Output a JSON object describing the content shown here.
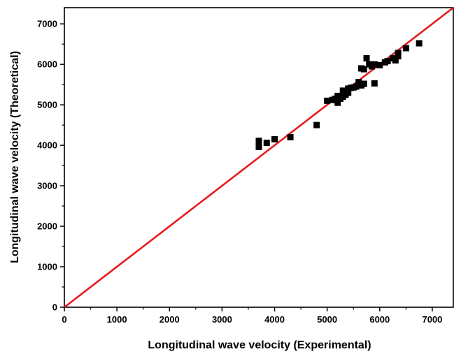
{
  "chart_data": {
    "type": "scatter",
    "title": "",
    "xlabel": "Longitudinal wave velocity (Experimental)",
    "ylabel": "Longitudinal wave velocity (Theoretical)",
    "xlim": [
      0,
      7400
    ],
    "ylim": [
      0,
      7400
    ],
    "xticks": [
      0,
      1000,
      2000,
      3000,
      4000,
      5000,
      6000,
      7000
    ],
    "yticks": [
      0,
      1000,
      2000,
      3000,
      4000,
      5000,
      6000,
      7000
    ],
    "grid": false,
    "legend": "none",
    "series": [
      {
        "marker": "square",
        "color": "#000000",
        "points": [
          [
            3700,
            3960
          ],
          [
            3700,
            4030
          ],
          [
            3700,
            4110
          ],
          [
            3850,
            4060
          ],
          [
            4000,
            4150
          ],
          [
            4300,
            4200
          ],
          [
            4800,
            4500
          ],
          [
            5000,
            5100
          ],
          [
            5100,
            5120
          ],
          [
            5150,
            5150
          ],
          [
            5200,
            5050
          ],
          [
            5200,
            5220
          ],
          [
            5250,
            5150
          ],
          [
            5300,
            5200
          ],
          [
            5300,
            5350
          ],
          [
            5350,
            5250
          ],
          [
            5400,
            5300
          ],
          [
            5400,
            5400
          ],
          [
            5450,
            5420
          ],
          [
            5500,
            5430
          ],
          [
            5550,
            5450
          ],
          [
            5600,
            5500
          ],
          [
            5600,
            5560
          ],
          [
            5650,
            5480
          ],
          [
            5650,
            5900
          ],
          [
            5700,
            5880
          ],
          [
            5700,
            5520
          ],
          [
            5750,
            6150
          ],
          [
            5800,
            6000
          ],
          [
            5850,
            5950
          ],
          [
            5900,
            5530
          ],
          [
            5900,
            6000
          ],
          [
            6000,
            5980
          ],
          [
            6100,
            6050
          ],
          [
            6150,
            6080
          ],
          [
            6250,
            6150
          ],
          [
            6300,
            6100
          ],
          [
            6350,
            6200
          ],
          [
            6350,
            6280
          ],
          [
            6500,
            6400
          ],
          [
            6750,
            6520
          ]
        ]
      }
    ],
    "reference_line": {
      "color": "#e8191c",
      "from": [
        0,
        0
      ],
      "to": [
        7400,
        7400
      ]
    },
    "colors": {
      "axis": "#000000",
      "marker": "#000000",
      "line": "#e8191c"
    }
  }
}
